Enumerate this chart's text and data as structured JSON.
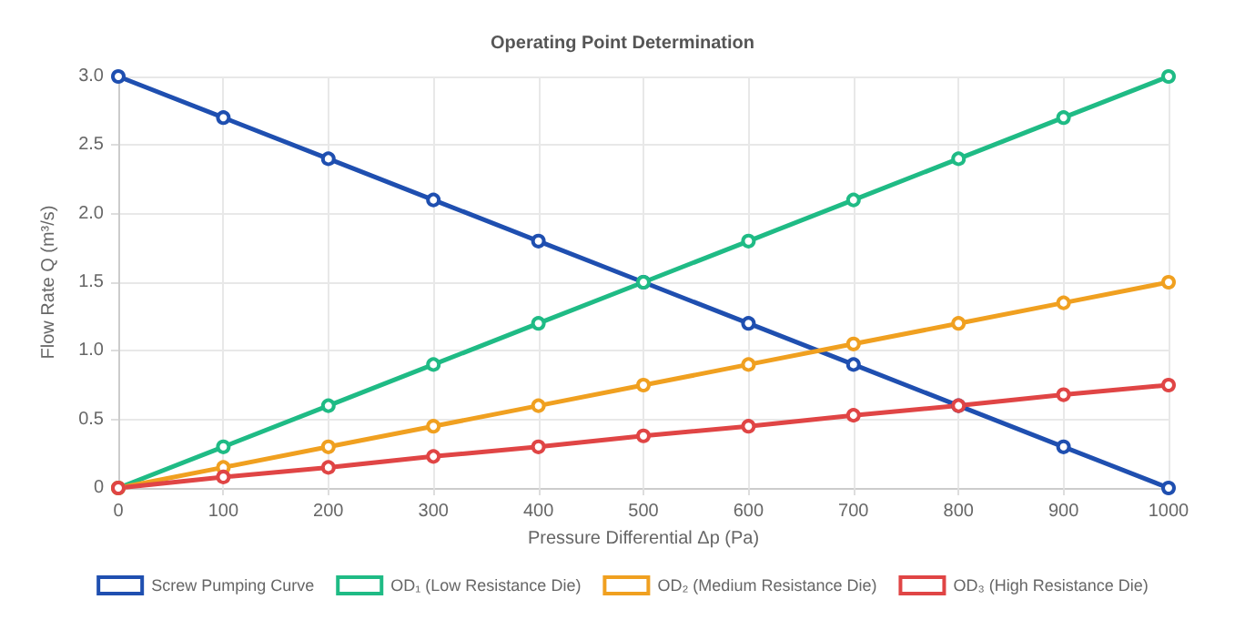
{
  "chart_data": {
    "type": "line",
    "title": "Operating Point Determination",
    "xlabel": "Pressure Differential Δp (Pa)",
    "ylabel": "Flow Rate Q (m³/s)",
    "x": [
      0,
      100,
      200,
      300,
      400,
      500,
      600,
      700,
      800,
      900,
      1000
    ],
    "series": [
      {
        "name": "Screw Pumping Curve",
        "color": "#1f4fb0",
        "values": [
          3.0,
          2.7,
          2.4,
          2.1,
          1.8,
          1.5,
          1.2,
          0.9,
          0.6,
          0.3,
          0
        ]
      },
      {
        "name": "OD₁ (Low Resistance Die)",
        "color": "#1fbb85",
        "values": [
          0,
          0.3,
          0.6,
          0.9,
          1.2,
          1.5,
          1.8,
          2.1,
          2.4,
          2.7,
          3.0
        ]
      },
      {
        "name": "OD₂ (Medium Resistance Die)",
        "color": "#f0a020",
        "values": [
          0,
          0.15,
          0.3,
          0.45,
          0.6,
          0.75,
          0.9,
          1.05,
          1.2,
          1.35,
          1.5
        ]
      },
      {
        "name": "OD₃ (High Resistance Die)",
        "color": "#e04545",
        "values": [
          0,
          0.08,
          0.15,
          0.23,
          0.3,
          0.38,
          0.45,
          0.53,
          0.6,
          0.68,
          0.75
        ]
      }
    ],
    "xlim": [
      0,
      1000
    ],
    "xticks": [
      0,
      100,
      200,
      300,
      400,
      500,
      600,
      700,
      800,
      900,
      1000
    ],
    "ylim": [
      0,
      3
    ],
    "yticks": [
      0,
      0.5,
      {
        "value": 1,
        "label": "1.0"
      },
      1.5,
      {
        "value": 2,
        "label": "2.0"
      },
      2.5,
      {
        "value": 3,
        "label": "3.0"
      }
    ],
    "grid": true,
    "legend": "bottom",
    "marker": "circle",
    "line_style": "solid"
  }
}
